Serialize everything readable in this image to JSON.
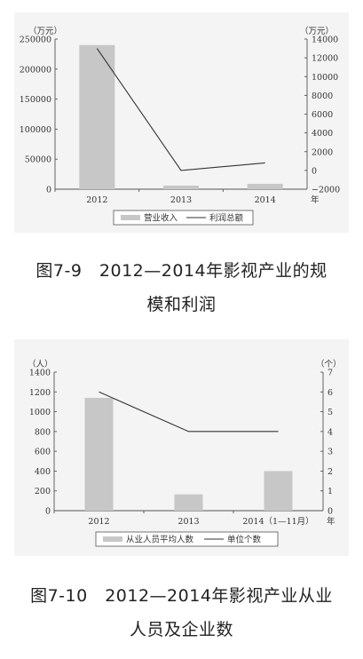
{
  "chart_data": [
    {
      "type": "bar+line",
      "left_unit": "（万元）",
      "right_unit": "（万元）",
      "x_suffix": "年",
      "categories": [
        "2012",
        "2013",
        "2014"
      ],
      "left_ylim": [
        0,
        250000
      ],
      "left_ticks": [
        "0",
        "50000",
        "100000",
        "150000",
        "200000",
        "250000"
      ],
      "right_ylim": [
        -2000,
        14000
      ],
      "right_ticks": [
        "−2000",
        "0",
        "2000",
        "4000",
        "6000",
        "8000",
        "10000",
        "12000",
        "14000"
      ],
      "series": [
        {
          "name": "营业收入",
          "kind": "bar",
          "axis": "left",
          "values": [
            240000,
            6000,
            9000
          ]
        },
        {
          "name": "利润总额",
          "kind": "line",
          "axis": "right",
          "values": [
            13000,
            0,
            800
          ]
        }
      ]
    },
    {
      "type": "bar+line",
      "left_unit": "（人）",
      "right_unit": "（个）",
      "x_suffix": "年",
      "categories": [
        "2012",
        "2013",
        "2014（1—11月）"
      ],
      "left_ylim": [
        0,
        1400
      ],
      "left_ticks": [
        "0",
        "200",
        "400",
        "600",
        "800",
        "1000",
        "1200",
        "1400"
      ],
      "right_ylim": [
        0,
        7
      ],
      "right_ticks": [
        "0",
        "1",
        "2",
        "3",
        "4",
        "5",
        "6",
        "7"
      ],
      "series": [
        {
          "name": "从业人员平均人数",
          "kind": "bar",
          "axis": "left",
          "values": [
            1140,
            165,
            400
          ]
        },
        {
          "name": "单位个数",
          "kind": "line",
          "axis": "right",
          "values": [
            6,
            4,
            4
          ]
        }
      ]
    }
  ],
  "captions": [
    {
      "line1": "图7-9　2012—2014年影视产业的规",
      "line2": "模和利润"
    },
    {
      "line1": "图7-10　2012—2014年影视产业从业",
      "line2": "人员及企业数"
    }
  ]
}
